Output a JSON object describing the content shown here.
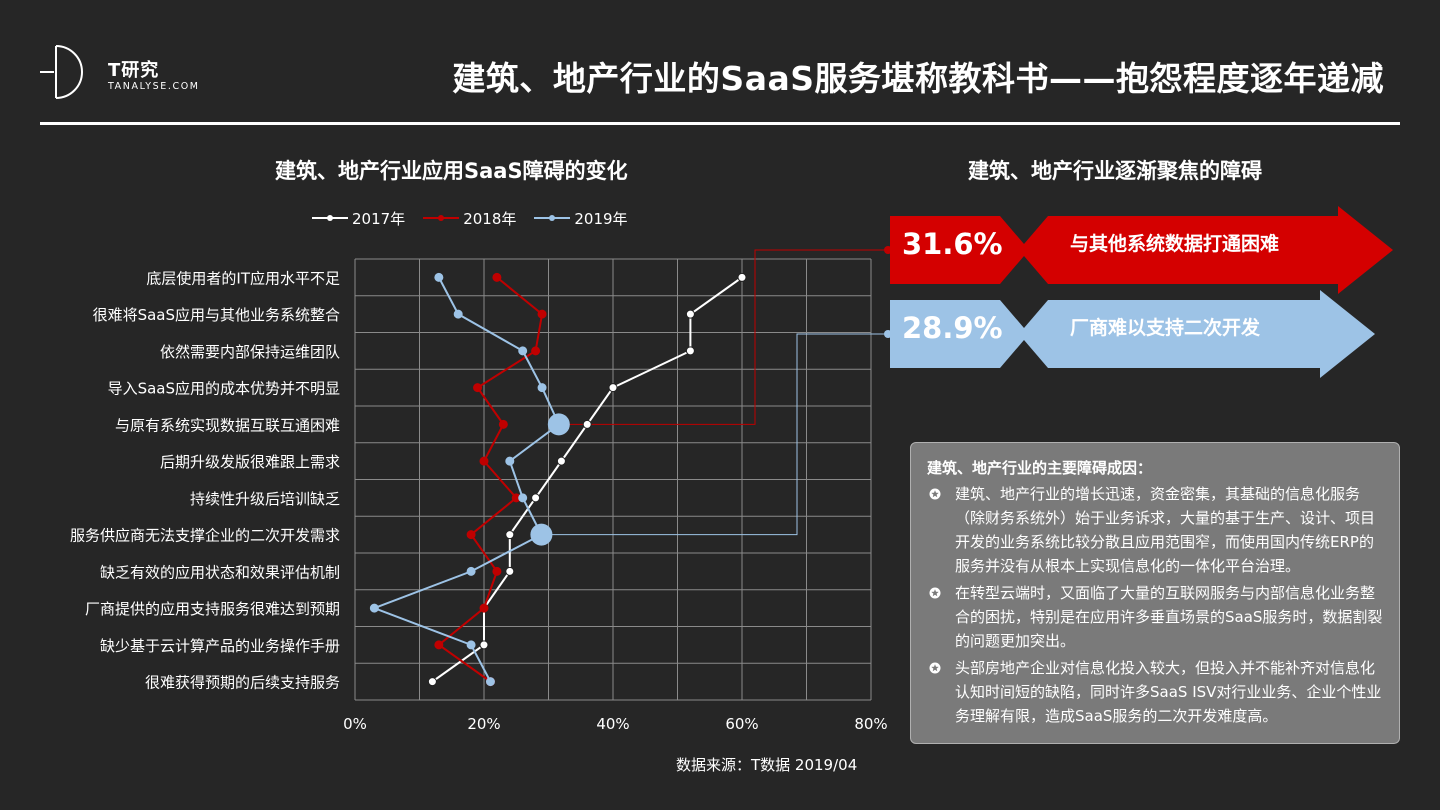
{
  "brand": {
    "logo_text": "T研究",
    "logo_sub": "TANALYSE.COM"
  },
  "page_title": "建筑、地产行业的SaaS服务堪称教科书——抱怨程度逐年递减",
  "colors": {
    "background": "#262626",
    "s2017": "#ffffff",
    "s2018": "#c00000",
    "s2019": "#9dc3e6"
  },
  "chart_data": {
    "type": "line",
    "orientation": "horizontal",
    "title": "建筑、地产行业应用SaaS障碍的变化",
    "categories": [
      "底层使用者的IT应用水平不足",
      "很难将SaaS应用与其他业务系统整合",
      "依然需要内部保持运维团队",
      "导入SaaS应用的成本优势并不明显",
      "与原有系统实现数据互联互通困难",
      "后期升级发版很难跟上需求",
      "持续性升级后培训缺乏",
      "服务供应商无法支撑企业的二次开发需求",
      "缺乏有效的应用状态和效果评估机制",
      "厂商提供的应用支持服务很难达到预期",
      "缺少基于云计算产品的业务操作手册",
      "很难获得预期的后续支持服务"
    ],
    "series": [
      {
        "name": "2017年",
        "color": "#ffffff",
        "values": [
          60,
          52,
          52,
          40,
          36,
          32,
          28,
          24,
          24,
          20,
          20,
          12
        ]
      },
      {
        "name": "2018年",
        "color": "#c00000",
        "values": [
          22,
          29,
          28,
          19,
          23,
          20,
          25,
          18,
          22,
          20,
          13,
          21
        ]
      },
      {
        "name": "2019年",
        "color": "#9dc3e6",
        "values": [
          13,
          16,
          26,
          29,
          31.6,
          24,
          26,
          28.9,
          18,
          3,
          18,
          21
        ]
      }
    ],
    "highlights": [
      {
        "series": "2019年",
        "category": "与原有系统实现数据互联互通困难",
        "value": 31.6
      },
      {
        "series": "2019年",
        "category": "服务供应商无法支撑企业的二次开发需求",
        "value": 28.9
      }
    ],
    "x_ticks": [
      "0%",
      "20%",
      "40%",
      "60%",
      "80%"
    ],
    "xlim": [
      0,
      80
    ],
    "grid": true,
    "legend_position": "top"
  },
  "right_panel": {
    "title": "建筑、地产行业逐渐聚焦的障碍",
    "banners": [
      {
        "pct": "31.6%",
        "text": "与其他系统数据打通困难"
      },
      {
        "pct": "28.9%",
        "text": "厂商难以支持二次开发"
      }
    ]
  },
  "reasons": {
    "title": "建筑、地产行业的主要障碍成因：",
    "items": [
      "建筑、地产行业的增长迅速，资金密集，其基础的信息化服务（除财务系统外）始于业务诉求，大量的基于生产、设计、项目开发的业务系统比较分散且应用范围窄，而使用国内传统ERP的服务并没有从根本上实现信息化的一体化平台治理。",
      "在转型云端时，又面临了大量的互联网服务与内部信息化业务整合的困扰，特别是在应用许多垂直场景的SaaS服务时，数据割裂的问题更加突出。",
      "头部房地产企业对信息化投入较大，但投入并不能补齐对信息化认知时间短的缺陷，同时许多SaaS ISV对行业业务、企业个性业务理解有限，造成SaaS服务的二次开发难度高。"
    ]
  },
  "source": "数据来源：T数据 2019/04"
}
